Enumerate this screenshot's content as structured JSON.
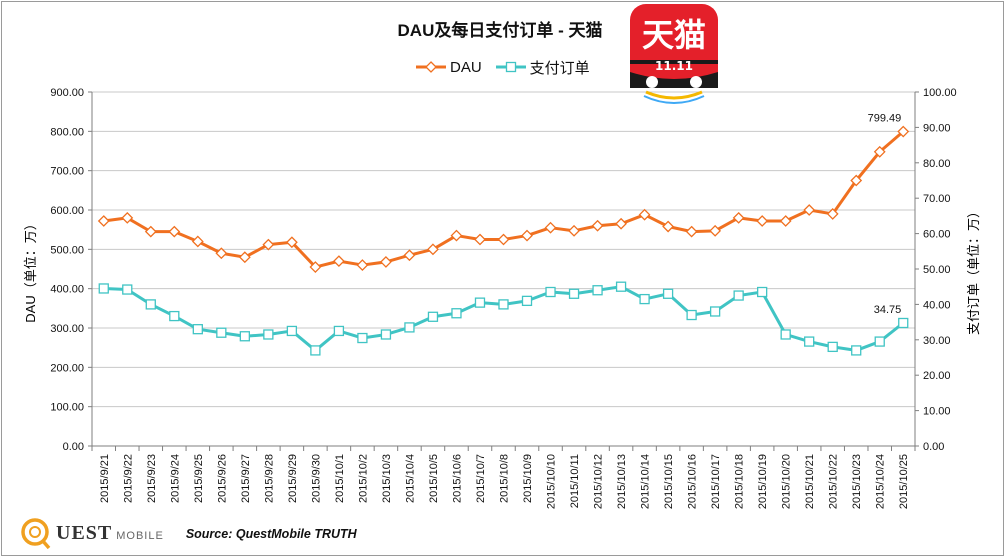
{
  "title": "DAU及每日支付订单 - 天猫",
  "logo": {
    "icon": "tmall-logo-icon",
    "text": "天猫",
    "badge": "11.11",
    "colors": {
      "bg": "#e4202a",
      "text": "#ffffff"
    }
  },
  "footer": {
    "brand": "UEST",
    "brand_sub": "MOBILE",
    "source": "Source: QuestMobile TRUTH",
    "icon": "questmobile-logo-icon"
  },
  "colors": {
    "dau": "#f07020",
    "orders": "#40c4c4",
    "grid": "#c8c8c8",
    "axis": "#7f7f7f"
  },
  "chart_data": {
    "type": "line",
    "title": "DAU及每日支付订单 - 天猫",
    "ylabel": "DAU（单位：万）",
    "y2label": "支付订单（单位：万）",
    "ylim": [
      0,
      900
    ],
    "y2lim": [
      0,
      100
    ],
    "yticks": [
      "0.00",
      "100.00",
      "200.00",
      "300.00",
      "400.00",
      "500.00",
      "600.00",
      "700.00",
      "800.00",
      "900.00"
    ],
    "y2ticks": [
      "0.00",
      "10.00",
      "20.00",
      "30.00",
      "40.00",
      "50.00",
      "60.00",
      "70.00",
      "80.00",
      "90.00",
      "100.00"
    ],
    "grid": true,
    "legend": "top-center",
    "categories": [
      "2015/9/21",
      "2015/9/22",
      "2015/9/23",
      "2015/9/24",
      "2015/9/25",
      "2015/9/26",
      "2015/9/27",
      "2015/9/28",
      "2015/9/29",
      "2015/9/30",
      "2015/10/1",
      "2015/10/2",
      "2015/10/3",
      "2015/10/4",
      "2015/10/5",
      "2015/10/6",
      "2015/10/7",
      "2015/10/8",
      "2015/10/9",
      "2015/10/10",
      "2015/10/11",
      "2015/10/12",
      "2015/10/13",
      "2015/10/14",
      "2015/10/15",
      "2015/10/16",
      "2015/10/17",
      "2015/10/18",
      "2015/10/19",
      "2015/10/20",
      "2015/10/21",
      "2015/10/22",
      "2015/10/23",
      "2015/10/24",
      "2015/10/25"
    ],
    "series": [
      {
        "name": "DAU",
        "axis": "left",
        "marker": "diamond",
        "values": [
          572,
          580,
          545,
          545,
          520,
          490,
          480,
          512,
          518,
          455,
          470,
          460,
          468,
          485,
          500,
          535,
          525,
          525,
          535,
          555,
          547,
          560,
          565,
          588,
          558,
          545,
          547,
          580,
          572,
          572,
          600,
          590,
          675,
          748,
          799.49
        ]
      },
      {
        "name": "支付订单",
        "axis": "right",
        "marker": "square",
        "values": [
          44.5,
          44.2,
          40.0,
          36.7,
          33.0,
          32.0,
          31.0,
          31.5,
          32.5,
          27.0,
          32.5,
          30.5,
          31.5,
          33.5,
          36.5,
          37.5,
          40.5,
          40.0,
          41.0,
          43.5,
          43.0,
          44.0,
          45.0,
          41.5,
          43.0,
          37.0,
          38.0,
          42.5,
          43.5,
          31.5,
          29.5,
          28.0,
          27.0,
          29.5,
          34.75
        ]
      }
    ],
    "annotations": [
      {
        "series": "DAU",
        "index": 34,
        "text": "799.49"
      },
      {
        "series": "支付订单",
        "index": 34,
        "text": "34.75"
      }
    ]
  }
}
